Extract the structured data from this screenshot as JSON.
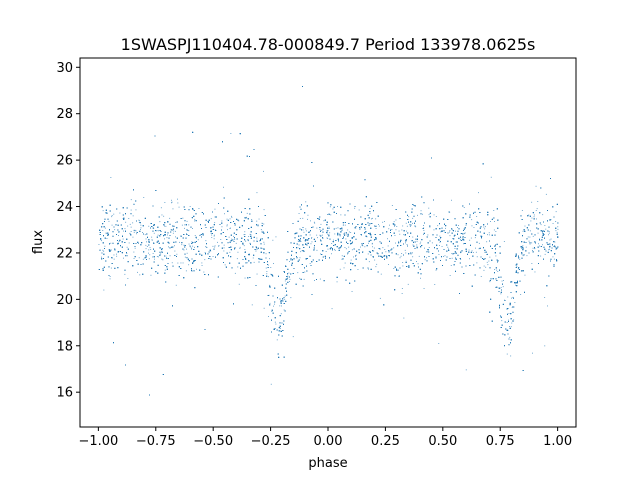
{
  "chart_data": {
    "type": "scatter",
    "title": "1SWASPJ110404.78-000849.7 Period 133978.0625s",
    "xlabel": "phase",
    "ylabel": "flux",
    "xlim": [
      -1.08,
      1.08
    ],
    "ylim": [
      14.5,
      30.4
    ],
    "x_ticks": [
      -1.0,
      -0.75,
      -0.5,
      -0.25,
      0.0,
      0.25,
      0.5,
      0.75,
      1.0
    ],
    "x_tick_labels": [
      "−1.00",
      "−0.75",
      "−0.50",
      "−0.25",
      "0.00",
      "0.25",
      "0.50",
      "0.75",
      "1.00"
    ],
    "y_ticks": [
      16,
      18,
      20,
      22,
      24,
      26,
      28,
      30
    ],
    "y_tick_labels": [
      "16",
      "18",
      "20",
      "22",
      "24",
      "26",
      "28",
      "30"
    ],
    "grid": false,
    "marker_color": "#1f77b4",
    "series": [
      {
        "points_description_note": "",
        "baseline_flux": 22.6,
        "primary_eclipse_phase": [
          -0.22,
          0.78
        ],
        "primary_eclipse_min_flux": 19.0,
        "secondary_eclipse_phase": [
          0.28
        ],
        "phase_range": [
          -1.0,
          1.0
        ],
        "flux_range_observed": [
          15.1,
          29.8
        ],
        "x": [
          -1.0,
          -0.9,
          -0.8,
          -0.7,
          -0.6,
          -0.5,
          -0.4,
          -0.3,
          -0.25,
          -0.22,
          -0.2,
          -0.15,
          -0.1,
          0.0,
          0.1,
          0.2,
          0.3,
          0.4,
          0.5,
          0.6,
          0.7,
          0.75,
          0.78,
          0.8,
          0.85,
          0.9,
          1.0
        ],
        "y": [
          22.6,
          22.6,
          22.6,
          22.6,
          22.6,
          22.6,
          22.5,
          22.2,
          21.2,
          19.2,
          20.6,
          22.1,
          22.5,
          22.6,
          22.6,
          22.6,
          22.5,
          22.6,
          22.6,
          22.6,
          22.2,
          21.2,
          19.2,
          20.6,
          22.1,
          22.5,
          22.6
        ]
      }
    ]
  }
}
